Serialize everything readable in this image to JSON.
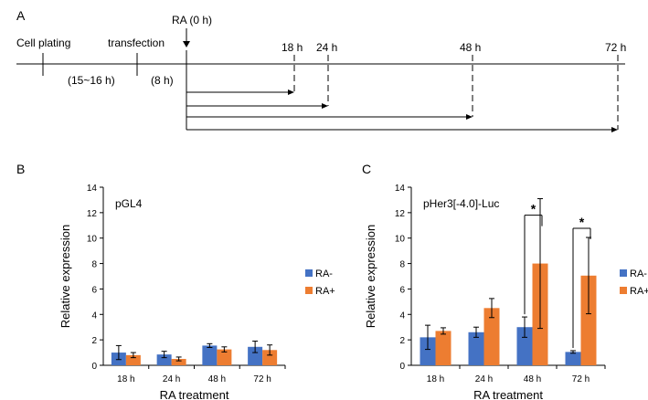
{
  "panels": {
    "A": "A",
    "B": "B",
    "C": "C"
  },
  "timeline": {
    "ra_label": "RA (0 h)",
    "events": [
      "Cell plating",
      "transfection"
    ],
    "durations": [
      "(15~16 h)",
      "(8 h)"
    ],
    "timepoints": [
      "18 h",
      "24 h",
      "48 h",
      "72 h"
    ]
  },
  "colors": {
    "ra_minus": "#4472C4",
    "ra_plus": "#ED7D31"
  },
  "significance_marker": "*",
  "chart_data": [
    {
      "type": "bar",
      "title": "pGL4",
      "xlabel": "RA treatment",
      "ylabel": "Relative expression",
      "categories": [
        "18 h",
        "24 h",
        "48 h",
        "72 h"
      ],
      "yticks": [
        "0",
        "2",
        "4",
        "6",
        "8",
        "10",
        "12",
        "14"
      ],
      "ylim": [
        0,
        14
      ],
      "legend_position": "right",
      "grid": false,
      "series": [
        {
          "name": "RA-",
          "values": [
            1.0,
            0.85,
            1.55,
            1.45
          ],
          "errors": [
            0.55,
            0.25,
            0.15,
            0.45
          ]
        },
        {
          "name": "RA+",
          "values": [
            0.8,
            0.5,
            1.25,
            1.2
          ],
          "errors": [
            0.2,
            0.15,
            0.2,
            0.4
          ]
        }
      ]
    },
    {
      "type": "bar",
      "title": "pHer3[-4.0]-Luc",
      "xlabel": "RA treatment",
      "ylabel": "Relative expression",
      "categories": [
        "18 h",
        "24 h",
        "48 h",
        "72 h"
      ],
      "yticks": [
        "0",
        "2",
        "4",
        "6",
        "8",
        "10",
        "12",
        "14"
      ],
      "ylim": [
        0,
        14
      ],
      "legend_position": "right",
      "grid": false,
      "series": [
        {
          "name": "RA-",
          "values": [
            2.2,
            2.6,
            3.0,
            1.05
          ],
          "errors": [
            0.95,
            0.4,
            0.8,
            0.1
          ]
        },
        {
          "name": "RA+",
          "values": [
            2.7,
            4.5,
            8.0,
            7.05
          ],
          "errors": [
            0.25,
            0.75,
            5.1,
            3.0
          ]
        }
      ],
      "significance": [
        "48 h",
        "72 h"
      ]
    }
  ]
}
